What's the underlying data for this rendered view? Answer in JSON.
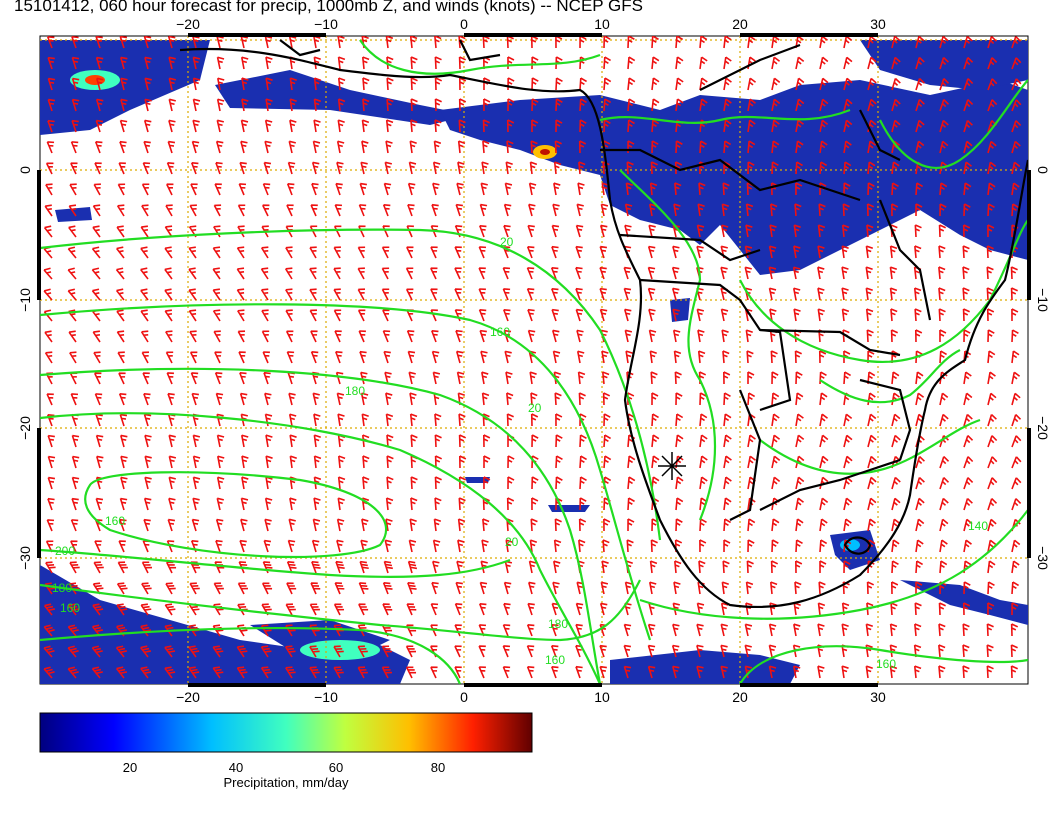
{
  "title": "15101412, 060 hour forecast for precip, 1000mb Z, and winds (knots) -- NCEP GFS",
  "map": {
    "lon_ticks": [
      "−20",
      "−10",
      "0",
      "10",
      "20",
      "30"
    ],
    "lat_ticks": [
      "0",
      "−10",
      "−20",
      "−30"
    ],
    "contour_labels": [
      "20",
      "160",
      "180",
      "20",
      "160",
      "20",
      "200",
      "180",
      "160",
      "160",
      "180",
      "160",
      "140"
    ],
    "colors": {
      "contour": "#22dd22",
      "wind": "#ee1111",
      "grid": "#ddaa00",
      "precip_low": "#001a8c",
      "land": "#000000"
    }
  },
  "colorbar": {
    "tick_labels": [
      "20",
      "40",
      "60",
      "80"
    ],
    "title": "Precipitation, mm/day",
    "colors": [
      "#00007f",
      "#0000ff",
      "#00bfff",
      "#40ffbf",
      "#bfff40",
      "#ffbf00",
      "#ff4000",
      "#7f0000"
    ]
  }
}
